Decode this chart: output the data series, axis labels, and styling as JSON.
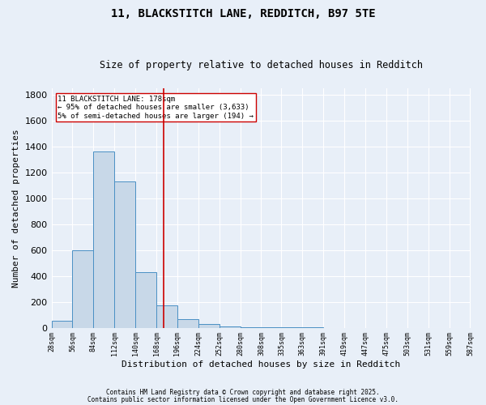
{
  "title1": "11, BLACKSTITCH LANE, REDDITCH, B97 5TE",
  "title2": "Size of property relative to detached houses in Redditch",
  "xlabel": "Distribution of detached houses by size in Redditch",
  "ylabel": "Number of detached properties",
  "bar_left_edges": [
    28,
    56,
    84,
    112,
    140,
    168,
    196,
    224,
    252,
    280,
    308,
    335,
    363,
    391,
    419,
    447,
    475,
    503,
    531,
    559
  ],
  "bar_heights": [
    55,
    600,
    1360,
    1130,
    430,
    170,
    65,
    30,
    10,
    5,
    2,
    1,
    1,
    0,
    0,
    0,
    0,
    0,
    0,
    0
  ],
  "bin_width": 28,
  "property_size": 178,
  "bar_color": "#c8d8e8",
  "bar_edge_color": "#4a90c4",
  "red_line_color": "#cc0000",
  "bg_color": "#e8eff8",
  "grid_color": "#ffffff",
  "annotation_text": "11 BLACKSTITCH LANE: 178sqm\n← 95% of detached houses are smaller (3,633)\n5% of semi-detached houses are larger (194) →",
  "annotation_box_color": "#ffffff",
  "annotation_box_edge": "#cc0000",
  "ylim": [
    0,
    1850
  ],
  "yticks": [
    0,
    200,
    400,
    600,
    800,
    1000,
    1200,
    1400,
    1600,
    1800
  ],
  "xlim_left": 28,
  "xlim_right": 587,
  "tick_labels": [
    "28sqm",
    "56sqm",
    "84sqm",
    "112sqm",
    "140sqm",
    "168sqm",
    "196sqm",
    "224sqm",
    "252sqm",
    "280sqm",
    "308sqm",
    "335sqm",
    "363sqm",
    "391sqm",
    "419sqm",
    "447sqm",
    "475sqm",
    "503sqm",
    "531sqm",
    "559sqm",
    "587sqm"
  ],
  "tick_positions": [
    28,
    56,
    84,
    112,
    140,
    168,
    196,
    224,
    252,
    280,
    308,
    335,
    363,
    391,
    419,
    447,
    475,
    503,
    531,
    559,
    587
  ],
  "footer1": "Contains HM Land Registry data © Crown copyright and database right 2025.",
  "footer2": "Contains public sector information licensed under the Open Government Licence v3.0."
}
